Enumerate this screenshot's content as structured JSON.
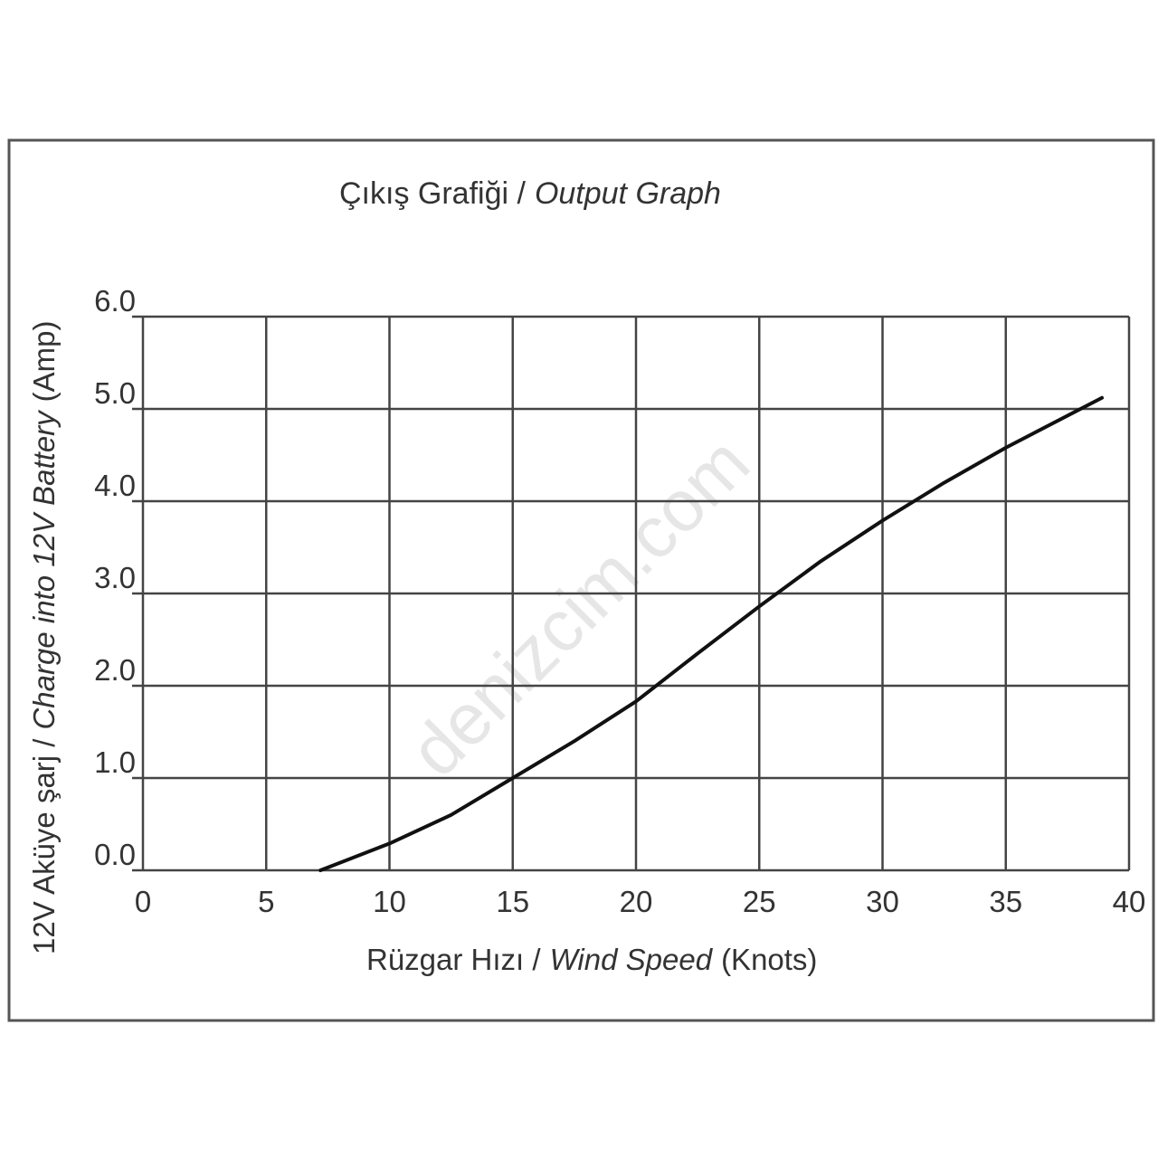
{
  "chart_data": {
    "type": "line",
    "title": [
      "Çıkış Grafiği /",
      "Output Graph"
    ],
    "xlabel": [
      "Rüzgar Hızı /",
      "Wind Speed",
      "(Knots)"
    ],
    "ylabel": [
      "12V Aküye şarj /",
      "Charge into 12V Battery",
      "(Amp)"
    ],
    "watermark": "denizcim.com",
    "x": [
      7.2,
      10,
      12.5,
      15,
      17.5,
      20,
      22.5,
      25,
      27.5,
      30,
      32.5,
      35,
      38.9
    ],
    "values": [
      0,
      0.29,
      0.6,
      1.0,
      1.4,
      1.83,
      2.35,
      2.86,
      3.35,
      3.79,
      4.2,
      4.58,
      5.12
    ],
    "color": "#111111",
    "xlim": [
      0,
      40
    ],
    "xticks": [
      0,
      5,
      10,
      15,
      20,
      25,
      30,
      35,
      40
    ],
    "ylim": [
      0,
      6
    ],
    "yticks": [
      {
        "value": 0,
        "label": "0.0"
      },
      {
        "value": 1,
        "label": "1.0"
      },
      {
        "value": 2,
        "label": "2.0"
      },
      {
        "value": 3,
        "label": "3.0"
      },
      {
        "value": 4,
        "label": "4.0"
      },
      {
        "value": 5,
        "label": "5.0"
      },
      {
        "value": 6,
        "label": "6.0"
      }
    ],
    "grid": true
  }
}
